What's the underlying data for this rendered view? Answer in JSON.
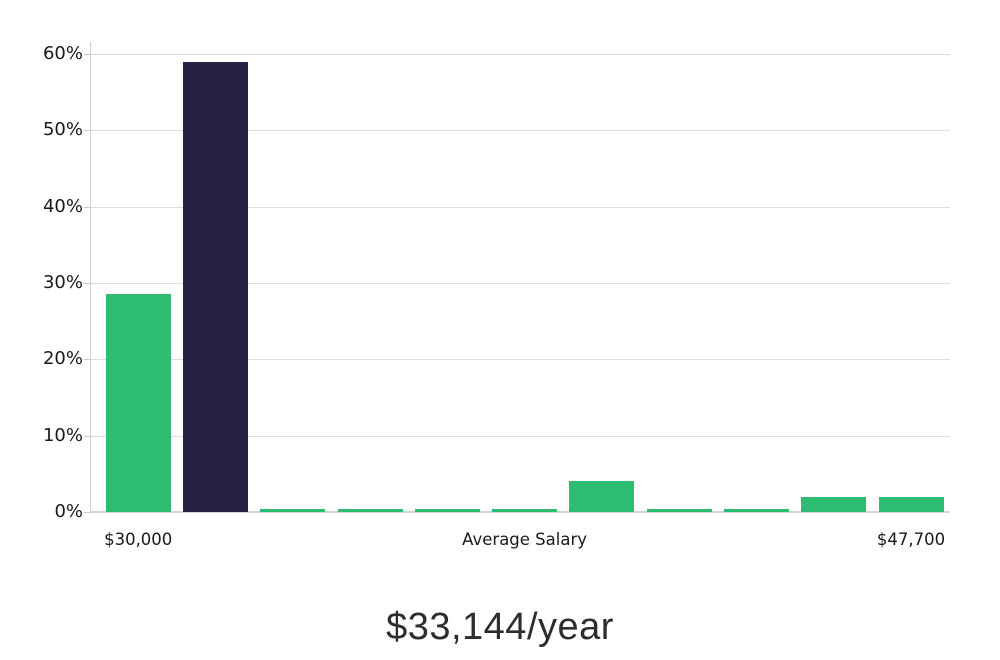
{
  "chart_data": {
    "type": "bar",
    "values": [
      28.6,
      59,
      0.4,
      0.4,
      0.4,
      0.4,
      4,
      0.4,
      0.4,
      2,
      2
    ],
    "highlight_index": 1,
    "bar_color": "#2dbc72",
    "highlight_color": "#262243",
    "ylim": [
      0,
      60
    ],
    "y_ticks": [
      {
        "value": 60,
        "label": "60%"
      },
      {
        "value": 50,
        "label": "50%"
      },
      {
        "value": 40,
        "label": "40%"
      },
      {
        "value": 30,
        "label": "30%"
      },
      {
        "value": 20,
        "label": "20%"
      },
      {
        "value": 10,
        "label": "10%"
      },
      {
        "value": 0,
        "label": "0%"
      }
    ],
    "x_tick_labels": [
      {
        "text": "$30,000",
        "bar_index": 0
      },
      {
        "text": "Average Salary",
        "bar_index": 5
      },
      {
        "text": "$47,700",
        "bar_index": 10
      }
    ],
    "grid": "horizontal",
    "legend": "none",
    "caption": "$33,144/year"
  }
}
